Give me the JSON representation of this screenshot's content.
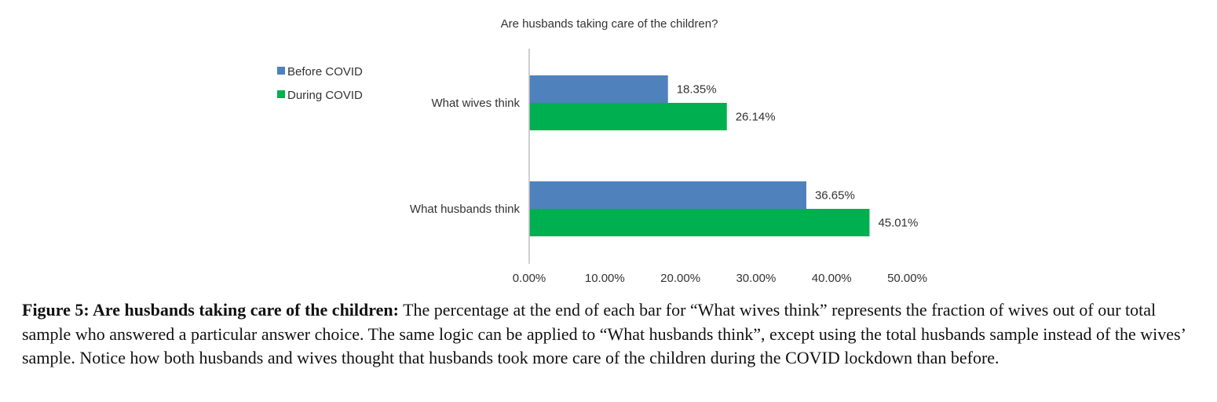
{
  "chart_data": {
    "type": "bar",
    "orientation": "horizontal",
    "title": "Are husbands taking care of the children?",
    "categories": [
      "What wives think",
      "What husbands think"
    ],
    "series": [
      {
        "name": "Before COVID",
        "values": [
          18.35,
          36.65
        ],
        "labels": [
          "18.35%",
          "36.65%"
        ],
        "color": "#4F81BD"
      },
      {
        "name": "During COVID",
        "values": [
          26.14,
          45.01
        ],
        "labels": [
          "26.14%",
          "45.01%"
        ],
        "color": "#00B050"
      }
    ],
    "x_ticks": [
      "0.00%",
      "10.00%",
      "20.00%",
      "30.00%",
      "40.00%",
      "50.00%"
    ],
    "xlim": [
      0,
      50
    ],
    "xlabel": "",
    "ylabel": "",
    "grid": false,
    "legend_position": "top-left"
  },
  "caption": {
    "label": "Figure 5: Are husbands taking care of the children:",
    "text": " The percentage at the end of each bar for “What wives think” represents the fraction of wives out of our total sample who answered a particular answer choice. The same logic can be applied to “What husbands think”, except using the total husbands sample instead of the wives’ sample. Notice how both husbands and wives thought that husbands took more care of the children during the COVID lockdown than before."
  }
}
